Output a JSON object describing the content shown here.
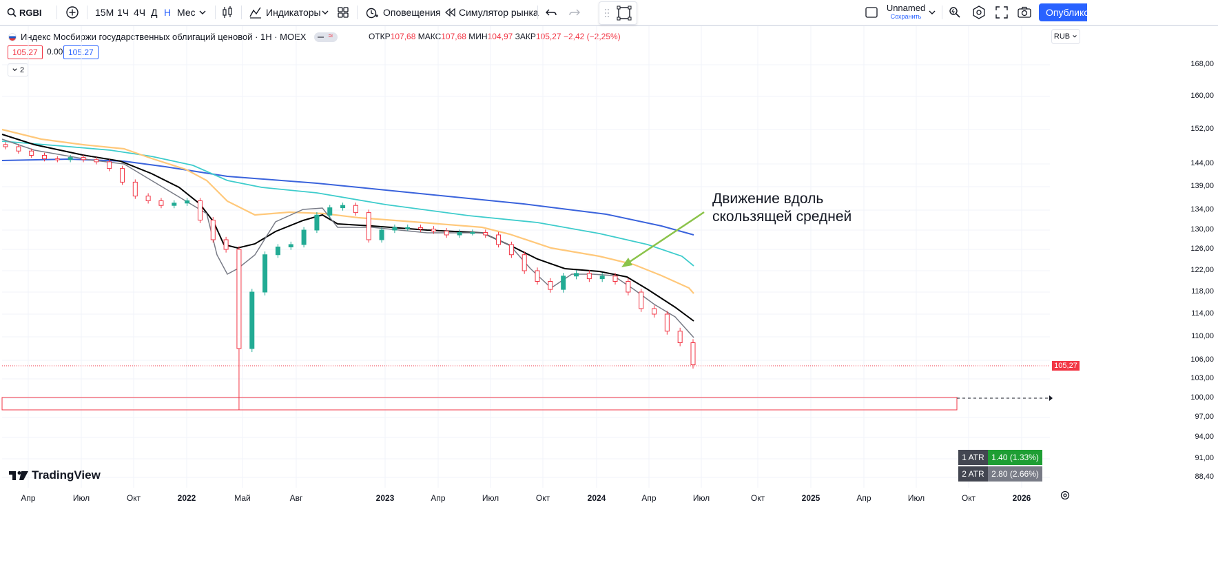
{
  "toolbar": {
    "symbol": "RGBI",
    "intervals": [
      "15М",
      "1Ч",
      "4Ч",
      "Д",
      "Н",
      "Мес"
    ],
    "active_interval": "Н",
    "indicators_label": "Индикаторы",
    "alerts_label": "Оповещения",
    "replay_label": "Симулятор рынка",
    "layout_name": "Unnamed",
    "save_label": "Сохранить",
    "publish_label": "Опубликовать"
  },
  "legend": {
    "title": "Индекс Мосбиржи государственных облигаций ценовой · 1Н · MOEX",
    "open_label": "ОТКР",
    "open": "107,68",
    "high_label": "МАКС",
    "high": "107,68",
    "low_label": "МИН",
    "low": "104,97",
    "close_label": "ЗАКР",
    "close": "105,27",
    "change": "−2,42 (−2,25%)",
    "bid": "105.27",
    "spread": "0.00",
    "ask": "105.27",
    "collapse_count": "2"
  },
  "currency": "RUB",
  "price_axis": [
    "168,00",
    "160,00",
    "152,00",
    "144,00",
    "139,00",
    "134,00",
    "130,00",
    "126,00",
    "122,00",
    "118,00",
    "114,00",
    "110,00",
    "106,00",
    "103,00",
    "100,00",
    "97,00",
    "94,00",
    "91,00",
    "88,40"
  ],
  "current_price_label": "105,27",
  "time_axis": [
    "Апр",
    "Июл",
    "Окт",
    "2022",
    "Май",
    "Авг",
    "2023",
    "Апр",
    "Июл",
    "Окт",
    "2024",
    "Апр",
    "Июл",
    "Окт",
    "2025",
    "Апр",
    "Июл",
    "Окт",
    "2026"
  ],
  "annotation": {
    "line1": "Движение вдоль",
    "line2": "скользящей средней"
  },
  "atr": [
    {
      "label": "1 ATR",
      "value": "1.40 (1.33%)",
      "color": "#22ab94"
    },
    {
      "label": "2 ATR",
      "value": "2.80 (2.66%)",
      "color": "#787b86"
    }
  ],
  "logo_text": "TradingView",
  "colors": {
    "up": "#22ab94",
    "down": "#f23645",
    "ma_fast": "#787b86",
    "ma_black": "#000000",
    "ma_orange": "#ffc87a",
    "ma_cyan": "#3ecccc",
    "ma_blue": "#3a63dc",
    "arrow": "#8bc34a",
    "accent": "#2962ff"
  },
  "chart_data": {
    "type": "candlestick",
    "symbol": "RGBI",
    "timeframe": "1Н",
    "close_sequence": [
      148.0,
      147.0,
      146.0,
      145.2,
      145.0,
      145.5,
      145.0,
      144.5,
      143.0,
      140.0,
      137.0,
      136.0,
      135.0,
      135.5,
      136.0,
      132.0,
      128.0,
      126.0,
      108.0,
      118.0,
      125.0,
      126.5,
      127.0,
      130.0,
      133.0,
      134.5,
      135.0,
      133.5,
      128.0,
      130.0,
      130.5,
      130.5,
      130.2,
      129.8,
      129.0,
      129.5,
      129.5,
      129.0,
      127.0,
      125.0,
      122.0,
      120.0,
      118.5,
      121.0,
      121.5,
      120.5,
      121.0,
      120.0,
      118.0,
      115.0,
      114.0,
      111.0,
      109.0,
      105.27
    ],
    "support_zone": [
      98.2,
      100.0
    ],
    "annotation": "Движение вдоль скользящей средней"
  }
}
